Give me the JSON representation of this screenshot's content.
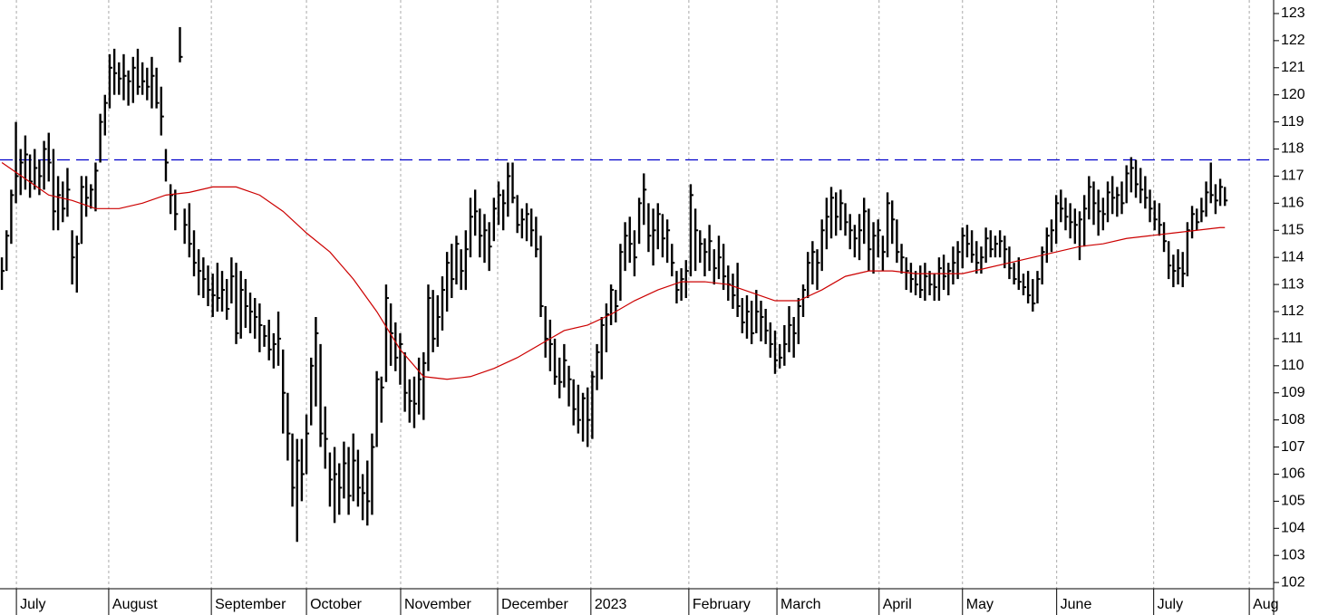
{
  "chart_data": {
    "type": "ohlc",
    "color": "#000000",
    "high": [
      114,
      115,
      116.5,
      119,
      118,
      118.5,
      117.8,
      118,
      117.6,
      118.3,
      118.6,
      118,
      117,
      116.8,
      117.3,
      115,
      114.8,
      117,
      117,
      116.7,
      117.5,
      119.3,
      120,
      121.5,
      121.7,
      121.2,
      121.5,
      120.9,
      121.4,
      121.7,
      121.2,
      121,
      121.4,
      121,
      120.3,
      118,
      116.7,
      116.5,
      122.5,
      115.8,
      116,
      115,
      114.3,
      114,
      113.7,
      113.4,
      113.8,
      113.5,
      113.2,
      114,
      113.8,
      113.5,
      113.2,
      112.7,
      112.5,
      112.3,
      111.5,
      111.7,
      111.2,
      112,
      110.6,
      109,
      107.5,
      107.3,
      107.3,
      108.2,
      110.3,
      111.8,
      110.8,
      108.5,
      106.8,
      107,
      106.4,
      107.2,
      107,
      107.5,
      106.9,
      106,
      106.5,
      107.5,
      109.8,
      109.6,
      113,
      112.3,
      111.6,
      111.2,
      110.5,
      109.5,
      109.6,
      110.3,
      110.5,
      113,
      112.8,
      112.6,
      113.3,
      114.2,
      114.5,
      114.8,
      114.3,
      115,
      116.2,
      116.5,
      115.8,
      115.6,
      115.3,
      116.2,
      116.8,
      116.5,
      117.5,
      117.5,
      116.3,
      115.8,
      116,
      115.8,
      115.5,
      114.8,
      112.2,
      111.7,
      111,
      110.3,
      110.8,
      110,
      109.5,
      109.3,
      109,
      109.2,
      109.8,
      110.8,
      111.8,
      112.3,
      113,
      112.8,
      114.5,
      115.3,
      115.5,
      115,
      116.2,
      117.1,
      116,
      115.8,
      116,
      115.6,
      115.4,
      114.5,
      113.5,
      113.6,
      113.9,
      116.7,
      115.8,
      115,
      114.7,
      115.2,
      114.3,
      114.8,
      114.5,
      113.7,
      113.4,
      113.8,
      112.5,
      112.6,
      112.4,
      112.8,
      112.4,
      112.1,
      111.6,
      111.3,
      110.8,
      111.5,
      112.2,
      111.8,
      112.5,
      113,
      114.2,
      114.6,
      114.3,
      115.4,
      116.2,
      116.6,
      116.4,
      116.5,
      116,
      115.6,
      115.2,
      115.6,
      116.2,
      115.8,
      115.3,
      115.4,
      114.8,
      116.4,
      116.1,
      115.4,
      114.5,
      114,
      113.8,
      113.5,
      113.7,
      113.8,
      113.5,
      113.4,
      114,
      114.1,
      113.8,
      114.4,
      114.6,
      115.1,
      115.2,
      115,
      114.6,
      114.4,
      115.1,
      115,
      114.8,
      115,
      114.8,
      114.4,
      113.8,
      114,
      113.4,
      113.5,
      113.2,
      113.5,
      114.4,
      115.1,
      115.4,
      116.3,
      116.5,
      116.2,
      116,
      115.8,
      115.7,
      116.3,
      117,
      116.8,
      116.5,
      116.2,
      116.8,
      117,
      116.6,
      116.8,
      117.4,
      117.7,
      117.6,
      117.3,
      117,
      116.5,
      116.1,
      116,
      115.3,
      114.6,
      114.1,
      114.3,
      114.2,
      115.3,
      115.9,
      115.8,
      116.2,
      116.8,
      117.5,
      116.7,
      116.9,
      116.6
    ],
    "low": [
      112.8,
      113.5,
      114.5,
      116,
      116.3,
      116.5,
      116.2,
      116.5,
      116.3,
      116.5,
      116.8,
      115,
      115,
      115.3,
      115.5,
      113,
      112.7,
      114.5,
      115.5,
      115.8,
      115.7,
      117.5,
      118.5,
      119.5,
      120,
      120,
      119.8,
      119.6,
      119.7,
      120,
      120,
      119.8,
      119.5,
      119.5,
      118.5,
      116.8,
      115.6,
      115,
      121.2,
      114.5,
      114,
      113.3,
      112.6,
      112.5,
      112.2,
      111.8,
      112,
      112,
      111.7,
      112.3,
      110.8,
      111,
      111.4,
      111.2,
      111,
      110.5,
      110.7,
      110.2,
      109.9,
      110,
      107.5,
      106.5,
      104.8,
      103.5,
      105,
      106,
      107.8,
      108.5,
      107,
      106.2,
      104.8,
      104.2,
      104.5,
      105.1,
      104.5,
      105,
      104.8,
      104.3,
      104.1,
      104.5,
      107,
      107.9,
      109.4,
      110,
      109.8,
      109.3,
      108.3,
      107.9,
      107.7,
      108.2,
      108,
      109.8,
      110.5,
      110.7,
      111.3,
      112,
      112.5,
      113,
      112.8,
      112.8,
      114,
      114.8,
      114,
      113.8,
      113.5,
      114.6,
      115.2,
      115,
      115.5,
      116,
      114.9,
      114.7,
      114.6,
      114.4,
      114,
      111.8,
      110.3,
      109.8,
      109.3,
      108.8,
      109.2,
      108.5,
      107.8,
      107.5,
      107.2,
      107,
      107.3,
      109.1,
      109.5,
      110.5,
      111.5,
      111.6,
      112.4,
      113.5,
      113.8,
      113.3,
      114.5,
      115.2,
      114.2,
      113.7,
      114.3,
      114,
      113.8,
      113.3,
      112.3,
      112.4,
      112.5,
      113.3,
      113.5,
      113.8,
      113.3,
      113.5,
      113,
      113.2,
      112.8,
      112.4,
      112.1,
      111.8,
      111.2,
      111,
      110.8,
      111.2,
      110.9,
      110.8,
      110.3,
      109.7,
      109.9,
      110,
      110.5,
      110.3,
      110.8,
      111.8,
      112.5,
      113,
      112.8,
      113.5,
      114.3,
      114.7,
      114.8,
      115,
      114.8,
      114.3,
      114,
      113.9,
      114.5,
      113.5,
      113.4,
      114,
      113.5,
      114,
      114.5,
      113.8,
      113.4,
      112.8,
      112.7,
      112.6,
      112.5,
      112.4,
      112.6,
      112.4,
      112.4,
      112.8,
      112.6,
      113,
      113.2,
      113.6,
      114,
      113.8,
      113.4,
      113.4,
      113.8,
      114,
      114,
      114,
      113.6,
      113.2,
      113,
      112.8,
      112.6,
      112.3,
      112,
      112.3,
      113,
      113.8,
      114.2,
      114.5,
      115.3,
      115,
      114.7,
      114.5,
      113.9,
      114.4,
      115.4,
      115.2,
      114.8,
      115,
      115.3,
      115.6,
      115.5,
      115.6,
      116,
      116.4,
      116.2,
      116,
      115.8,
      115.3,
      115,
      114.8,
      114.2,
      113.2,
      112.9,
      113,
      112.9,
      113.3,
      114.7,
      115,
      115.3,
      115.5,
      116,
      115.6,
      115.9,
      115.9
    ],
    "close": [
      113.5,
      114.8,
      116.3,
      117,
      117.5,
      117.8,
      116.8,
      117.3,
      117,
      118,
      117.5,
      115.7,
      116.3,
      115.8,
      116.5,
      114,
      114.5,
      116.6,
      116.2,
      116.5,
      117.2,
      119,
      119.7,
      121,
      120.8,
      120.6,
      120.7,
      120.5,
      121,
      120.3,
      120.5,
      120.3,
      120.7,
      119.7,
      119.2,
      117.5,
      116.3,
      115.6,
      121.4,
      115.2,
      114.5,
      113.8,
      113.5,
      113.2,
      112.8,
      112.6,
      112.5,
      112.8,
      112.1,
      113.3,
      111.2,
      112.8,
      112.2,
      112,
      111.8,
      111.5,
      111.1,
      110.6,
      110.8,
      111,
      109,
      107.5,
      105.5,
      106.5,
      106,
      107.5,
      110,
      111.2,
      107.5,
      107.3,
      105.8,
      106,
      105.5,
      106.4,
      105.2,
      106.5,
      105.5,
      105.3,
      105,
      107,
      109.5,
      109.2,
      112.5,
      111.2,
      110.3,
      110.8,
      109,
      108.7,
      108.6,
      109.5,
      110.1,
      112.5,
      111,
      111.8,
      112.8,
      113.8,
      113.2,
      114.5,
      113.5,
      114.3,
      115.5,
      115.7,
      114.8,
      115,
      114.4,
      115.8,
      116.3,
      116,
      117,
      116.2,
      115.2,
      115.4,
      115.6,
      115,
      114.3,
      112.2,
      111,
      110.8,
      109.6,
      109.4,
      110.2,
      109.5,
      108.4,
      108,
      108.8,
      108,
      109.6,
      110.5,
      111.5,
      111.9,
      112.8,
      112.2,
      114.2,
      114.8,
      114.5,
      114,
      116,
      116.5,
      114.8,
      115,
      115.6,
      114.7,
      115,
      113.8,
      112.8,
      113.2,
      113.5,
      116.3,
      115,
      114.5,
      114.2,
      114.6,
      113.6,
      114,
      113.3,
      113,
      112.6,
      112.2,
      111.6,
      112,
      111.2,
      112,
      111.8,
      111.3,
      110.8,
      110.2,
      110.3,
      110.8,
      111.5,
      111.2,
      112.2,
      112.8,
      113.8,
      114.2,
      113.8,
      115,
      115.5,
      116.2,
      115.5,
      116,
      115.3,
      115,
      114.7,
      115,
      115.7,
      114.3,
      114.8,
      115,
      114.2,
      116,
      115.4,
      114.2,
      114,
      113.5,
      113.2,
      113,
      112.8,
      113.3,
      113,
      112.9,
      113.6,
      113.3,
      113.5,
      113.8,
      114.2,
      114.8,
      114.5,
      114.1,
      113.8,
      114,
      114.7,
      114.3,
      114.5,
      114.6,
      114.3,
      113.6,
      113.2,
      113.1,
      112.9,
      112.6,
      112.3,
      113.2,
      114.2,
      114.8,
      115,
      116,
      115.8,
      115.5,
      115.3,
      115.2,
      115.4,
      115.8,
      116.6,
      116,
      115.7,
      115.6,
      116.4,
      116.2,
      116.3,
      116,
      117.1,
      117.3,
      116.7,
      116.5,
      116.2,
      115.8,
      115.4,
      115.2,
      114.6,
      113.7,
      113.5,
      113.6,
      113.4,
      115,
      115.6,
      115.3,
      115.7,
      116.4,
      116.3,
      116.1,
      116.6,
      116.1
    ],
    "moving_average": {
      "color": "#cc0000",
      "x": [
        0,
        5,
        10,
        15,
        20,
        25,
        30,
        35,
        40,
        45,
        50,
        55,
        60,
        65,
        70,
        75,
        80,
        85,
        90,
        95,
        100,
        105,
        110,
        115,
        120,
        125,
        130,
        135,
        140,
        145,
        150,
        155,
        160,
        165,
        170,
        175,
        180,
        185,
        190,
        195,
        200,
        205,
        210,
        215,
        220,
        225,
        230,
        235,
        240,
        245,
        250,
        255,
        260,
        261
      ],
      "values": [
        117.5,
        116.9,
        116.3,
        116.1,
        115.8,
        115.8,
        116,
        116.3,
        116.4,
        116.6,
        116.6,
        116.3,
        115.7,
        114.9,
        114.2,
        113.2,
        112,
        110.6,
        109.6,
        109.5,
        109.6,
        109.9,
        110.3,
        110.8,
        111.3,
        111.5,
        111.9,
        112.4,
        112.8,
        113.1,
        113.1,
        113,
        112.7,
        112.4,
        112.4,
        112.8,
        113.3,
        113.5,
        113.5,
        113.4,
        113.4,
        113.4,
        113.6,
        113.8,
        114,
        114.2,
        114.4,
        114.5,
        114.7,
        114.8,
        114.9,
        115,
        115.1,
        115.1
      ]
    },
    "hline": {
      "value": 117.6,
      "color": "#0000cc"
    },
    "xlim": [
      -0.4,
      271.4
    ],
    "xticks": [
      {
        "value": 3.1,
        "label": "July"
      },
      {
        "value": 22.8,
        "label": "August"
      },
      {
        "value": 44.7,
        "label": "September"
      },
      {
        "value": 65,
        "label": "October"
      },
      {
        "value": 85.1,
        "label": "November"
      },
      {
        "value": 105.8,
        "label": "December"
      },
      {
        "value": 125.7,
        "label": "2023"
      },
      {
        "value": 146.6,
        "label": "February"
      },
      {
        "value": 165.4,
        "label": "March"
      },
      {
        "value": 187.2,
        "label": "April"
      },
      {
        "value": 205,
        "label": "May"
      },
      {
        "value": 225.1,
        "label": "June"
      },
      {
        "value": 245.8,
        "label": "July"
      },
      {
        "value": 266.2,
        "label": "Aug"
      }
    ],
    "ylim": [
      101.77,
      123.5
    ],
    "yticks": [
      102,
      103,
      104,
      105,
      106,
      107,
      108,
      109,
      110,
      111,
      112,
      113,
      114,
      115,
      116,
      117,
      118,
      119,
      120,
      121,
      122,
      123
    ],
    "grid": true
  }
}
